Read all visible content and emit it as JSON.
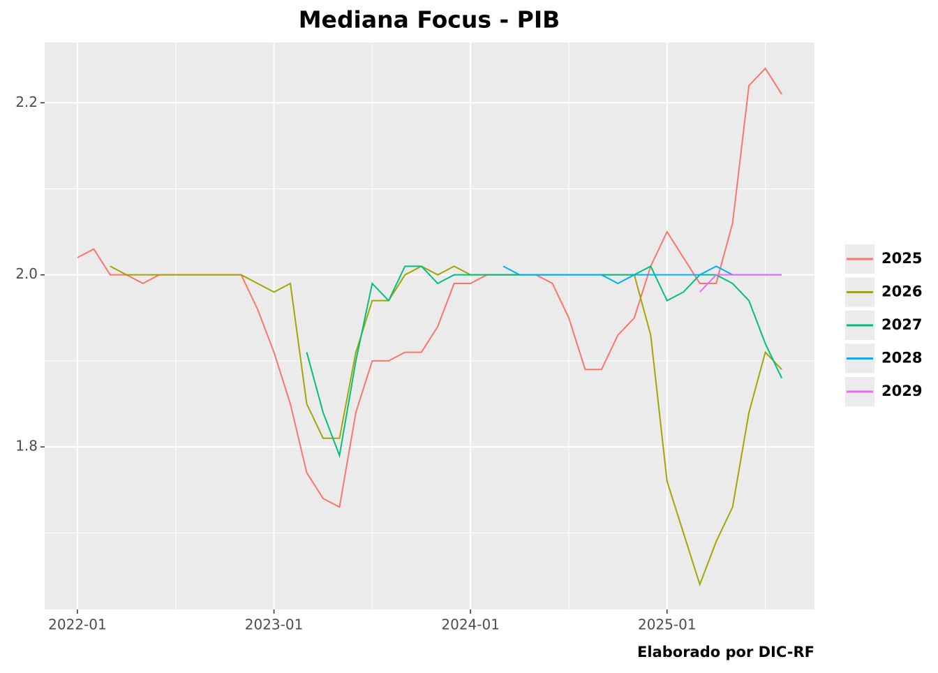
{
  "chart_data": {
    "type": "line",
    "title": "Mediana Focus - PIB",
    "caption": "Elaborado por DIC-RF",
    "x": [
      "2022-01",
      "2022-02",
      "2022-03",
      "2022-04",
      "2022-05",
      "2022-06",
      "2022-07",
      "2022-08",
      "2022-09",
      "2022-10",
      "2022-11",
      "2022-12",
      "2023-01",
      "2023-02",
      "2023-03",
      "2023-04",
      "2023-05",
      "2023-06",
      "2023-07",
      "2023-08",
      "2023-09",
      "2023-10",
      "2023-11",
      "2023-12",
      "2024-01",
      "2024-02",
      "2024-03",
      "2024-04",
      "2024-05",
      "2024-06",
      "2024-07",
      "2024-08",
      "2024-09",
      "2024-10",
      "2024-11",
      "2024-12",
      "2025-01",
      "2025-02",
      "2025-03",
      "2025-04",
      "2025-05",
      "2025-06",
      "2025-07",
      "2025-08"
    ],
    "series": [
      {
        "name": "2025",
        "color": "#F8766D",
        "values": [
          2.02,
          2.03,
          2.0,
          2.0,
          1.99,
          2.0,
          2.0,
          2.0,
          2.0,
          2.0,
          2.0,
          1.96,
          1.91,
          1.85,
          1.77,
          1.74,
          1.73,
          1.84,
          1.9,
          1.9,
          1.91,
          1.91,
          1.94,
          1.99,
          1.99,
          2.0,
          2.0,
          2.0,
          2.0,
          1.99,
          1.95,
          1.89,
          1.89,
          1.93,
          1.95,
          2.01,
          2.05,
          2.02,
          1.99,
          1.99,
          2.06,
          2.22,
          2.24,
          2.21
        ]
      },
      {
        "name": "2026",
        "color": "#A3A500",
        "values": [
          null,
          null,
          2.01,
          2.0,
          2.0,
          2.0,
          2.0,
          2.0,
          2.0,
          2.0,
          2.0,
          1.99,
          1.98,
          1.99,
          1.85,
          1.81,
          1.81,
          1.91,
          1.97,
          1.97,
          2.0,
          2.01,
          2.0,
          2.01,
          2.0,
          2.0,
          2.0,
          2.0,
          2.0,
          2.0,
          2.0,
          2.0,
          2.0,
          2.0,
          2.0,
          1.93,
          1.76,
          1.7,
          1.64,
          1.69,
          1.73,
          1.84,
          1.91,
          1.89
        ]
      },
      {
        "name": "2027",
        "color": "#00BF7D",
        "values": [
          null,
          null,
          null,
          null,
          null,
          null,
          null,
          null,
          null,
          null,
          null,
          null,
          null,
          null,
          1.91,
          1.84,
          1.79,
          1.9,
          1.99,
          1.97,
          2.01,
          2.01,
          1.99,
          2.0,
          2.0,
          2.0,
          2.0,
          2.0,
          2.0,
          2.0,
          2.0,
          2.0,
          2.0,
          2.0,
          2.0,
          2.01,
          1.97,
          1.98,
          2.0,
          2.0,
          1.99,
          1.97,
          1.92,
          1.88
        ]
      },
      {
        "name": "2028",
        "color": "#00B0F6",
        "values": [
          null,
          null,
          null,
          null,
          null,
          null,
          null,
          null,
          null,
          null,
          null,
          null,
          null,
          null,
          null,
          null,
          null,
          null,
          null,
          null,
          null,
          null,
          null,
          null,
          null,
          null,
          2.01,
          2.0,
          2.0,
          2.0,
          2.0,
          2.0,
          2.0,
          1.99,
          2.0,
          2.0,
          2.0,
          2.0,
          2.0,
          2.01,
          2.0,
          2.0,
          2.0,
          2.0
        ]
      },
      {
        "name": "2029",
        "color": "#E76BF3",
        "values": [
          null,
          null,
          null,
          null,
          null,
          null,
          null,
          null,
          null,
          null,
          null,
          null,
          null,
          null,
          null,
          null,
          null,
          null,
          null,
          null,
          null,
          null,
          null,
          null,
          null,
          null,
          null,
          null,
          null,
          null,
          null,
          null,
          null,
          null,
          null,
          null,
          null,
          null,
          1.98,
          2.0,
          2.0,
          2.0,
          2.0,
          2.0
        ]
      }
    ],
    "xlim": [
      "2021-11",
      "2025-10"
    ],
    "xticks": [
      "2022-01",
      "2023-01",
      "2024-01",
      "2025-01"
    ],
    "xminor": [
      "2022-07",
      "2023-07",
      "2024-07",
      "2025-07"
    ],
    "ylim": [
      1.611,
      2.27
    ],
    "yticks": [
      {
        "value": 1.8,
        "label": "1.8"
      },
      {
        "value": 2.0,
        "label": "2.0"
      },
      {
        "value": 2.2,
        "label": "2.2"
      }
    ],
    "yminor": [
      1.7,
      1.9,
      2.1
    ],
    "grid": true
  }
}
